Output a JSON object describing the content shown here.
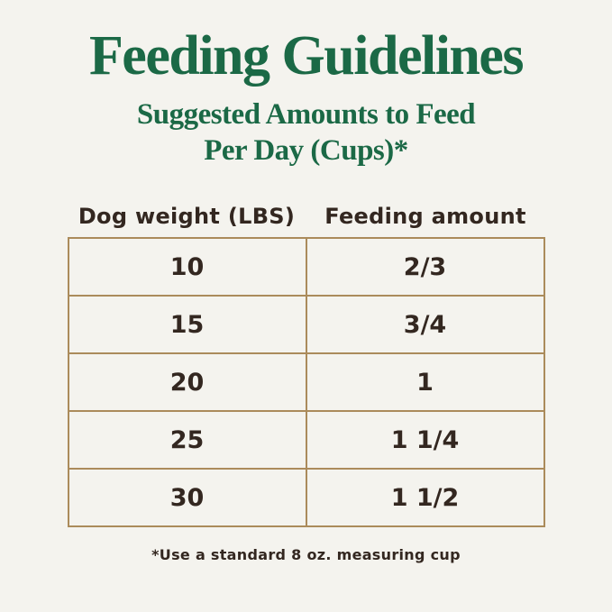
{
  "page": {
    "title": "Feeding Guidelines",
    "subtitle_line1": "Suggested Amounts to Feed",
    "subtitle_line2": "Per Day (Cups)*",
    "footnote": "*Use a standard 8 oz. measuring cup",
    "colors": {
      "accent_green": "#1b6946",
      "border_tan": "#ab8b5b",
      "text_brown": "#332720",
      "background_cream": "#f4f3ee"
    }
  },
  "chart_data": {
    "type": "table",
    "title": "Feeding Guidelines",
    "subtitle": "Suggested Amounts to Feed Per Day (Cups)*",
    "columns": [
      "Dog weight (LBS)",
      "Feeding amount"
    ],
    "rows": [
      [
        "10",
        "2/3"
      ],
      [
        "15",
        "3/4"
      ],
      [
        "20",
        "1"
      ],
      [
        "25",
        "1 1/4"
      ],
      [
        "30",
        "1 1/2"
      ]
    ],
    "footnote": "*Use a standard 8 oz. measuring cup"
  }
}
